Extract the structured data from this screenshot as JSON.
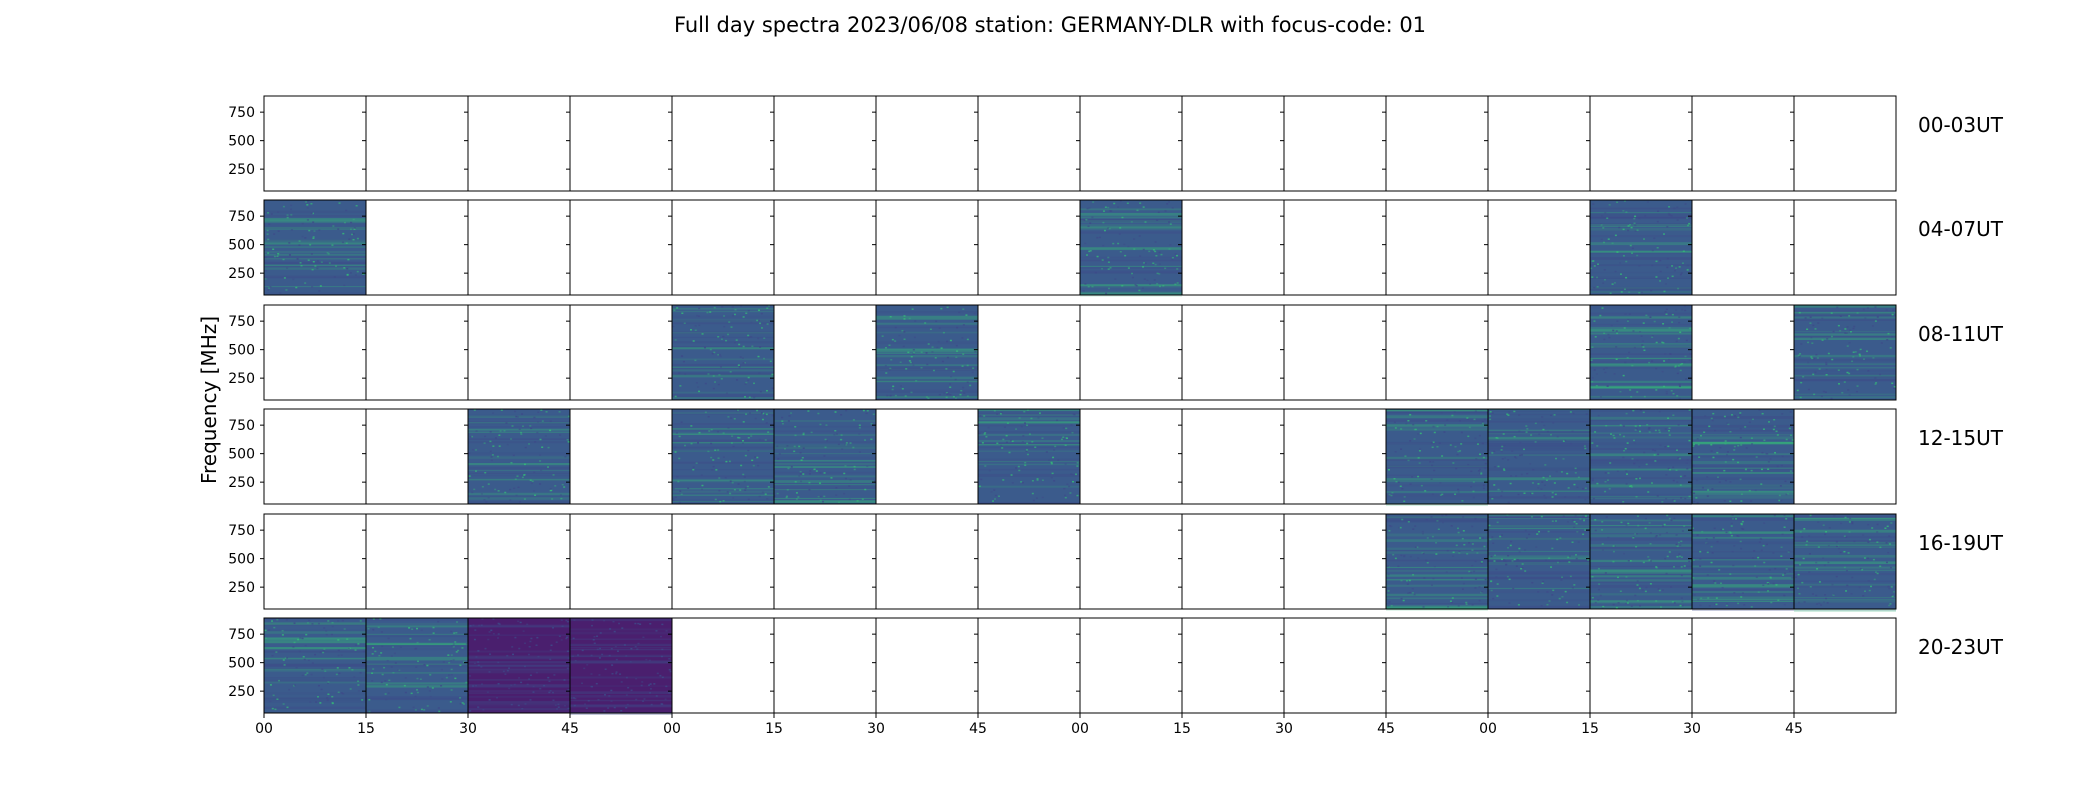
{
  "chart_data": {
    "type": "heatmap",
    "title": "Full day spectra 2023/06/08 station: GERMANY-DLR with focus-code: 01",
    "ylabel": "Frequency [MHz]",
    "y_ticks": [
      "750",
      "500",
      "250"
    ],
    "x_ticks": [
      "00",
      "15",
      "30",
      "45",
      "00",
      "15",
      "30",
      "45",
      "00",
      "15",
      "30",
      "45",
      "00",
      "15",
      "30",
      "45"
    ],
    "row_labels": [
      "00-03UT",
      "04-07UT",
      "08-11UT",
      "12-15UT",
      "16-19UT",
      "20-23UT"
    ],
    "panels_per_row": 16,
    "colors": {
      "normal_spectrum": "#3b5b8c",
      "dark_spectrum": "#4a1f6e",
      "speckle_light": "#35b779",
      "speckle_dark": "#3e4a89",
      "frame": "#000000"
    },
    "panel_status": [
      [
        "empty",
        "empty",
        "empty",
        "empty",
        "empty",
        "empty",
        "empty",
        "empty",
        "empty",
        "empty",
        "empty",
        "empty",
        "empty",
        "empty",
        "empty",
        "empty"
      ],
      [
        "data",
        "empty",
        "empty",
        "empty",
        "empty",
        "empty",
        "empty",
        "empty",
        "data",
        "empty",
        "empty",
        "empty",
        "empty",
        "data",
        "empty",
        "empty"
      ],
      [
        "empty",
        "empty",
        "empty",
        "empty",
        "data",
        "empty",
        "data",
        "empty",
        "empty",
        "empty",
        "empty",
        "empty",
        "empty",
        "data",
        "empty",
        "data"
      ],
      [
        "empty",
        "empty",
        "data",
        "empty",
        "data",
        "data",
        "empty",
        "data",
        "empty",
        "empty",
        "empty",
        "data",
        "data",
        "data",
        "data",
        "empty"
      ],
      [
        "empty",
        "empty",
        "empty",
        "empty",
        "empty",
        "empty",
        "empty",
        "empty",
        "empty",
        "empty",
        "empty",
        "data",
        "data",
        "data",
        "data",
        "data"
      ],
      [
        "data",
        "data",
        "dark",
        "dark",
        "empty",
        "empty",
        "empty",
        "empty",
        "empty",
        "empty",
        "empty",
        "empty",
        "empty",
        "empty",
        "empty",
        "empty"
      ]
    ]
  }
}
